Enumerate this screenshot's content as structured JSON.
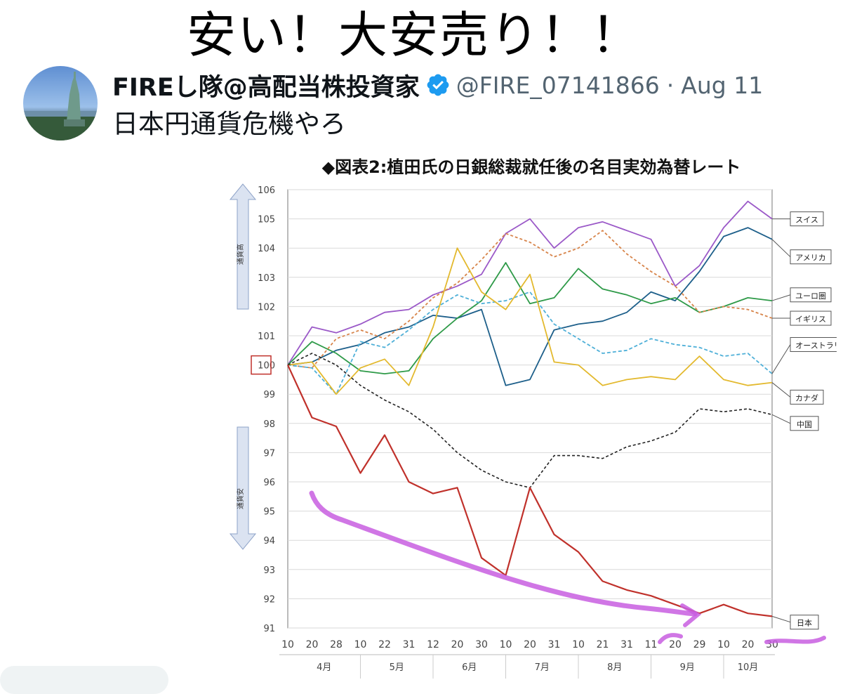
{
  "meme_title": "安い！大安売り！！",
  "tweet": {
    "display_name": "FIREし隊@高配当株投資家",
    "handle": "@FIRE_07141866",
    "separator": "·",
    "date": "Aug 11",
    "text": "日本円通貨危機やろ"
  },
  "colors": {
    "verified": "#1d9bf0",
    "japan": "#c0312b",
    "switzerland": "#9b59c8",
    "usa": "#1d5f8a",
    "euro": "#2e9a48",
    "uk": "#d7844a",
    "australia": "#4fb0d8",
    "canada": "#e3b92e",
    "china": "#222222",
    "annotation": "#c85ee0"
  },
  "chart_data": {
    "type": "line",
    "title": "◆図表2:植田氏の日銀総裁就任後の名目実効為替レート",
    "ylim": [
      91,
      106
    ],
    "yticks": [
      "91",
      "92",
      "93",
      "94",
      "95",
      "96",
      "97",
      "98",
      "99",
      "100",
      "101",
      "102",
      "103",
      "104",
      "105",
      "106"
    ],
    "xlim": [
      0,
      100
    ],
    "grid": true,
    "x_day_ticks": [
      "10",
      "20",
      "28",
      "10",
      "22",
      "31",
      "12",
      "20",
      "30",
      "10",
      "20",
      "31",
      "10",
      "21",
      "31",
      "11",
      "20",
      "29",
      "10",
      "20",
      "30"
    ],
    "month_labels": [
      "4月",
      "5月",
      "6月",
      "7月",
      "8月",
      "9月",
      "10月"
    ],
    "arrow_up_label": "通貨高",
    "arrow_down_label": "通貨安",
    "x": [
      0,
      5,
      10,
      15,
      20,
      25,
      30,
      35,
      40,
      45,
      50,
      55,
      60,
      65,
      70,
      75,
      80,
      85,
      90,
      95,
      100
    ],
    "series": [
      {
        "name": "スイス",
        "values": [
          100,
          101.3,
          101.1,
          101.4,
          101.8,
          101.9,
          102.4,
          102.7,
          103.1,
          104.5,
          105.0,
          104.0,
          104.7,
          104.9,
          104.6,
          104.3,
          102.7,
          103.4,
          104.7,
          105.6,
          105.0
        ]
      },
      {
        "name": "アメリカ",
        "values": [
          100,
          100.1,
          100.5,
          100.7,
          101.1,
          101.3,
          101.7,
          101.6,
          101.9,
          99.3,
          99.5,
          101.2,
          101.4,
          101.5,
          101.8,
          102.5,
          102.2,
          103.2,
          104.4,
          104.7,
          104.3
        ]
      },
      {
        "name": "ユーロ圏",
        "values": [
          100,
          100.8,
          100.4,
          99.8,
          99.7,
          99.8,
          100.9,
          101.6,
          102.2,
          103.5,
          102.1,
          102.3,
          103.3,
          102.6,
          102.4,
          102.1,
          102.3,
          101.8,
          102.0,
          102.3,
          102.2
        ]
      },
      {
        "name": "イギリス",
        "values": [
          100,
          99.9,
          100.9,
          101.2,
          100.9,
          101.5,
          102.3,
          102.8,
          103.6,
          104.5,
          104.2,
          103.7,
          104.0,
          104.6,
          103.8,
          103.2,
          102.7,
          101.8,
          102.0,
          101.9,
          101.6
        ]
      },
      {
        "name": "オーストラリア",
        "values": [
          100,
          99.9,
          99.0,
          100.8,
          100.6,
          101.2,
          101.9,
          102.4,
          102.1,
          102.2,
          102.5,
          101.4,
          100.9,
          100.4,
          100.5,
          100.9,
          100.7,
          100.6,
          100.3,
          100.4,
          99.7
        ]
      },
      {
        "name": "カナダ",
        "values": [
          100,
          100.1,
          99.0,
          99.9,
          100.2,
          99.3,
          101.3,
          104.0,
          102.5,
          101.9,
          103.1,
          100.1,
          100.0,
          99.3,
          99.5,
          99.6,
          99.5,
          100.3,
          99.5,
          99.3,
          99.4
        ]
      },
      {
        "name": "中国",
        "values": [
          100,
          100.4,
          100.0,
          99.3,
          98.8,
          98.4,
          97.8,
          97.0,
          96.4,
          96.0,
          95.8,
          96.9,
          96.9,
          96.8,
          97.2,
          97.4,
          97.7,
          98.5,
          98.4,
          98.5,
          98.3
        ]
      },
      {
        "name": "日本",
        "values": [
          100,
          98.2,
          97.9,
          96.3,
          97.6,
          96.0,
          95.6,
          95.8,
          93.4,
          92.8,
          95.8,
          94.2,
          93.6,
          92.6,
          92.3,
          92.1,
          91.8,
          91.5,
          91.8,
          91.5,
          91.4
        ]
      }
    ]
  }
}
